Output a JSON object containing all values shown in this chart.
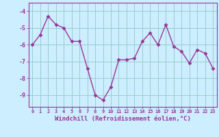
{
  "x": [
    0,
    1,
    2,
    3,
    4,
    5,
    6,
    7,
    8,
    9,
    10,
    11,
    12,
    13,
    14,
    15,
    16,
    17,
    18,
    19,
    20,
    21,
    22,
    23
  ],
  "y": [
    -6.0,
    -5.4,
    -4.3,
    -4.8,
    -5.0,
    -5.8,
    -5.8,
    -7.4,
    -9.0,
    -9.3,
    -8.5,
    -6.9,
    -6.9,
    -6.8,
    -5.8,
    -5.3,
    -6.0,
    -4.8,
    -6.1,
    -6.4,
    -7.1,
    -6.3,
    -6.5,
    -7.4
  ],
  "line_color": "#993399",
  "marker": "D",
  "markersize": 2.5,
  "linewidth": 1.0,
  "background_color": "#cceeff",
  "grid_color": "#99cccc",
  "xlabel": "Windchill (Refroidissement éolien,°C)",
  "xlabel_color": "#993399",
  "tick_color": "#993399",
  "ylabel_ticks": [
    -9,
    -8,
    -7,
    -6,
    -5,
    -4
  ],
  "xtick_labels": [
    "0",
    "1",
    "2",
    "3",
    "4",
    "5",
    "6",
    "7",
    "8",
    "9",
    "10",
    "11",
    "12",
    "13",
    "14",
    "15",
    "16",
    "17",
    "18",
    "19",
    "20",
    "21",
    "22",
    "23"
  ],
  "ylim": [
    -9.7,
    -3.5
  ],
  "xlim": [
    -0.5,
    23.5
  ]
}
